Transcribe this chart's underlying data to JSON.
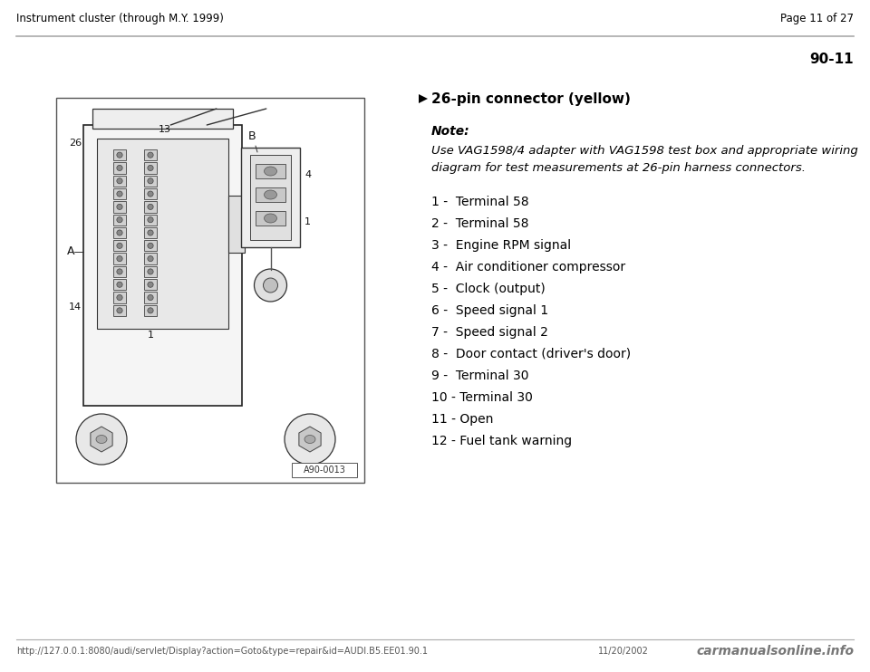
{
  "page_header_left": "Instrument cluster (through M.Y. 1999)",
  "page_header_right": "Page 11 of 27",
  "section_number": "90-11",
  "connector_title": "26-pin connector (yellow)",
  "note_label": "Note:",
  "note_text": "Use VAG1598/4 adapter with VAG1598 test box and appropriate wiring\ndiagram for test measurements at 26-pin harness connectors.",
  "pin_list": [
    "1 -  Terminal 58",
    "2 -  Terminal 58",
    "3 -  Engine RPM signal",
    "4 -  Air conditioner compressor",
    "5 -  Clock (output)",
    "6 -  Speed signal 1",
    "7 -  Speed signal 2",
    "8 -  Door contact (driver's door)",
    "9 -  Terminal 30",
    "10 - Terminal 30",
    "11 - Open",
    "12 - Fuel tank warning"
  ],
  "footer_url": "http://127.0.0.1:8080/audi/servlet/Display?action=Goto&type=repair&id=AUDI.B5.EE01.90.1",
  "footer_date": "11/20/2002",
  "footer_watermark": "carmanualsonline.info",
  "bg_color": "#ffffff",
  "header_line_color": "#aaaaaa",
  "footer_line_color": "#aaaaaa",
  "text_color": "#000000",
  "gray_text": "#555555",
  "image_label": "A90-0013"
}
